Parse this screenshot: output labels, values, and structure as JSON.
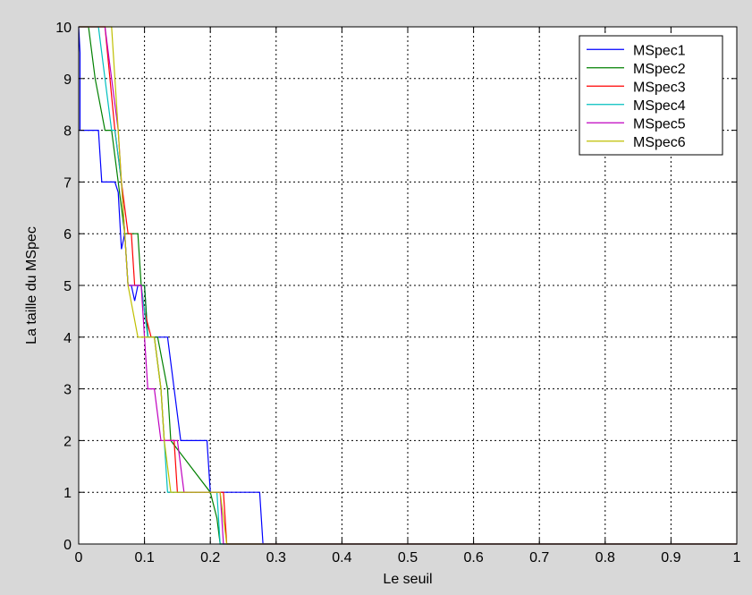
{
  "figure": {
    "background": "#d8d8d8",
    "axes_background": "#ffffff"
  },
  "chart_data": {
    "type": "line",
    "title": "",
    "xlabel": "Le seuil",
    "ylabel": "La taille du MSpec",
    "xlim": [
      0,
      1
    ],
    "ylim": [
      0,
      10
    ],
    "xticks": [
      0,
      0.1,
      0.2,
      0.3,
      0.4,
      0.5,
      0.6,
      0.7,
      0.8,
      0.9,
      1
    ],
    "xtick_labels": [
      "0",
      "0.1",
      "0.2",
      "0.3",
      "0.4",
      "0.5",
      "0.6",
      "0.7",
      "0.8",
      "0.9",
      "1"
    ],
    "yticks": [
      0,
      1,
      2,
      3,
      4,
      5,
      6,
      7,
      8,
      9,
      10
    ],
    "ytick_labels": [
      "0",
      "1",
      "2",
      "3",
      "4",
      "5",
      "6",
      "7",
      "8",
      "9",
      "10"
    ],
    "grid": true,
    "grid_style": "dotted",
    "legend_position": "top-right",
    "series": [
      {
        "name": "MSpec1",
        "color": "#0000ff",
        "x": [
          0,
          0.002,
          0.002,
          0.03,
          0.035,
          0.055,
          0.06,
          0.065,
          0.07,
          0.075,
          0.08,
          0.085,
          0.09,
          0.1,
          0.105,
          0.115,
          0.125,
          0.135,
          0.155,
          0.195,
          0.2,
          0.21,
          0.225,
          0.265,
          0.275,
          0.28,
          1
        ],
        "y": [
          10,
          9.5,
          8,
          8,
          7,
          7,
          6.8,
          5.7,
          6,
          5,
          5,
          4.7,
          5,
          5,
          4,
          4,
          4,
          4,
          2,
          2,
          1,
          1,
          1,
          1,
          1,
          0,
          0
        ]
      },
      {
        "name": "MSpec2",
        "color": "#008000",
        "x": [
          0,
          0.015,
          0.025,
          0.04,
          0.05,
          0.055,
          0.06,
          0.07,
          0.08,
          0.09,
          0.095,
          0.1,
          0.105,
          0.11,
          0.12,
          0.135,
          0.14,
          0.2,
          0.21,
          0.215,
          1
        ],
        "y": [
          10,
          10,
          9,
          8,
          8,
          7.5,
          7,
          6,
          6,
          6,
          5,
          5,
          4,
          4,
          4,
          3,
          2,
          1,
          0.5,
          0,
          0
        ]
      },
      {
        "name": "MSpec3",
        "color": "#ff0000",
        "x": [
          0,
          0.03,
          0.04,
          0.055,
          0.065,
          0.075,
          0.08,
          0.085,
          0.095,
          0.1,
          0.11,
          0.115,
          0.125,
          0.13,
          0.145,
          0.15,
          0.21,
          0.22,
          0.225,
          1
        ],
        "y": [
          10,
          10,
          10,
          8,
          7,
          6,
          6,
          5,
          5,
          4.5,
          4,
          4,
          3,
          2,
          2,
          1,
          1,
          1,
          0,
          0
        ]
      },
      {
        "name": "MSpec4",
        "color": "#00bfbf",
        "x": [
          0,
          0.03,
          0.04,
          0.05,
          0.055,
          0.065,
          0.07,
          0.075,
          0.08,
          0.095,
          0.105,
          0.115,
          0.125,
          0.13,
          0.135,
          0.2,
          0.21,
          0.215,
          1
        ],
        "y": [
          10,
          10,
          9,
          8,
          8,
          7,
          6,
          5,
          5,
          5,
          4,
          4,
          3,
          2,
          1,
          1,
          1,
          0,
          0
        ]
      },
      {
        "name": "MSpec5",
        "color": "#bf00bf",
        "x": [
          0,
          0.02,
          0.03,
          0.04,
          0.05,
          0.06,
          0.065,
          0.07,
          0.075,
          0.085,
          0.095,
          0.1,
          0.105,
          0.115,
          0.125,
          0.135,
          0.15,
          0.16,
          0.165,
          0.205,
          0.215,
          0.22,
          1
        ],
        "y": [
          10,
          10,
          10,
          10,
          9,
          8,
          7,
          6,
          5,
          5,
          5,
          4,
          3,
          3,
          2,
          2,
          2,
          1,
          1,
          1,
          1,
          0,
          0
        ]
      },
      {
        "name": "MSpec6",
        "color": "#bfbf00",
        "x": [
          0,
          0.04,
          0.05,
          0.055,
          0.06,
          0.065,
          0.07,
          0.075,
          0.09,
          0.095,
          0.1,
          0.115,
          0.125,
          0.13,
          0.14,
          0.195,
          0.2,
          0.215,
          0.22,
          0.225,
          1
        ],
        "y": [
          10,
          10,
          10,
          9,
          8,
          7,
          6,
          5,
          4,
          4,
          4,
          4,
          3,
          2,
          1,
          1,
          1,
          1,
          0.5,
          0,
          0
        ]
      }
    ]
  }
}
